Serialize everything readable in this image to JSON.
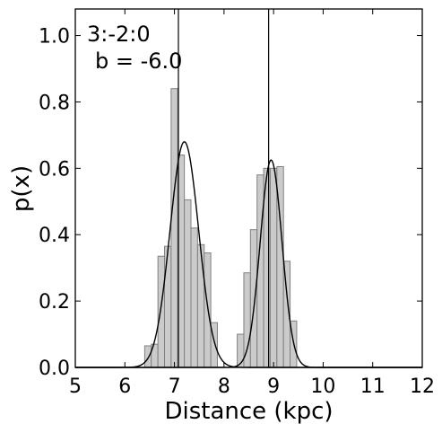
{
  "chart_data": {
    "type": "bar",
    "xlabel": "Distance (kpc)",
    "ylabel": "p(x)",
    "xlim": [
      5,
      12
    ],
    "ylim": [
      0,
      1.08
    ],
    "xticks": [
      "5",
      "6",
      "7",
      "8",
      "9",
      "10",
      "11",
      "12"
    ],
    "yticks": [
      "0.0",
      "0.2",
      "0.4",
      "0.6",
      "0.8",
      "1.0"
    ],
    "annotations": [
      "3:-2:0",
      "b = -6.0"
    ],
    "histogram": {
      "bin_width": 0.1333,
      "bins": [
        {
          "x": 6.4,
          "p": 0.065
        },
        {
          "x": 6.533,
          "p": 0.07
        },
        {
          "x": 6.667,
          "p": 0.335
        },
        {
          "x": 6.8,
          "p": 0.365
        },
        {
          "x": 6.933,
          "p": 0.84
        },
        {
          "x": 7.067,
          "p": 0.64
        },
        {
          "x": 7.2,
          "p": 0.505
        },
        {
          "x": 7.333,
          "p": 0.42
        },
        {
          "x": 7.467,
          "p": 0.37
        },
        {
          "x": 7.6,
          "p": 0.345
        },
        {
          "x": 7.733,
          "p": 0.135
        },
        {
          "x": 8.267,
          "p": 0.1
        },
        {
          "x": 8.4,
          "p": 0.285
        },
        {
          "x": 8.533,
          "p": 0.415
        },
        {
          "x": 8.667,
          "p": 0.58
        },
        {
          "x": 8.8,
          "p": 0.6
        },
        {
          "x": 8.933,
          "p": 0.6
        },
        {
          "x": 9.067,
          "p": 0.605
        },
        {
          "x": 9.2,
          "p": 0.32
        },
        {
          "x": 9.333,
          "p": 0.14
        }
      ]
    },
    "gaussians": [
      {
        "mu": 7.2,
        "sigma": 0.29,
        "peak": 0.68
      },
      {
        "mu": 8.95,
        "sigma": 0.22,
        "peak": 0.625
      }
    ],
    "vlines": [
      7.08,
      8.9
    ]
  }
}
